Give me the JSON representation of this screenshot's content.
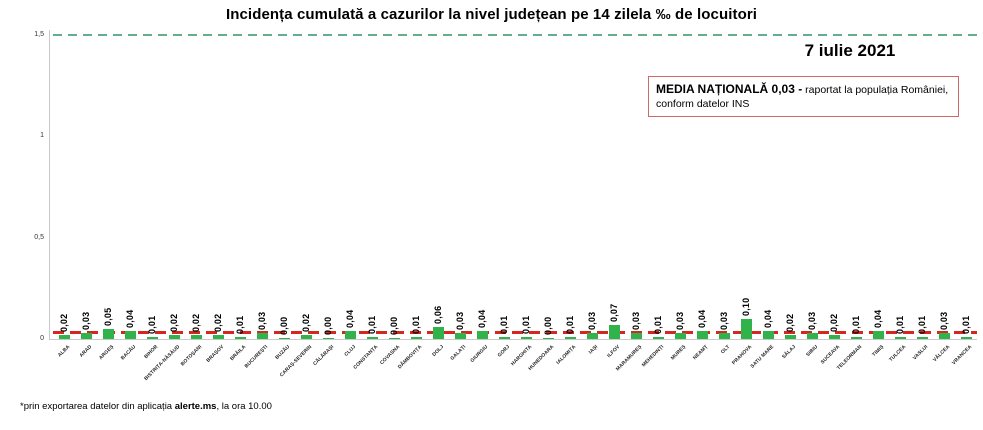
{
  "title": "Incidența cumulată a cazurilor la nivel județean pe 14 zilela ‰ de locuitori",
  "date_label": "7 iulie 2021",
  "national_average_box": {
    "bold_text": "MEDIA NAȚIONALĂ 0,03 -",
    "text_line1": " raportat la populația României,",
    "text_line2": "conform datelor INS"
  },
  "footnote": {
    "prefix": "*prin exportarea datelor din aplicația ",
    "bold": "alerte.ms",
    "suffix": ", la ora 10.00"
  },
  "chart_data": {
    "type": "bar",
    "title": "Incidența cumulată a cazurilor la nivel județean pe 14 zilela ‰ de locuitori",
    "xlabel": "",
    "ylabel": "",
    "ylim": [
      0,
      1.5
    ],
    "yticks": [
      {
        "value": 0,
        "label": "0"
      },
      {
        "value": 0.5,
        "label": "0,5"
      },
      {
        "value": 1,
        "label": "1"
      },
      {
        "value": 1.5,
        "label": "1,5"
      }
    ],
    "grid": false,
    "legend": null,
    "bar_color": "#2fb34a",
    "categories": [
      "ALBA",
      "ARAD",
      "ARGEȘ",
      "BACĂU",
      "BIHOR",
      "BISTRIȚA-NĂSĂUD",
      "BOTOȘANI",
      "BRAȘOV",
      "BRĂILA",
      "BUCUREȘTI",
      "BUZĂU",
      "CARAȘ-SEVERIN",
      "CĂLĂRAȘI",
      "CLUJ",
      "CONSTANȚA",
      "COVASNA",
      "DÂMBOVIȚA",
      "DOLJ",
      "GALAȚI",
      "GIURGIU",
      "GORJ",
      "HARGHITA",
      "HUNEDOARA",
      "IALOMIȚA",
      "IAȘI",
      "ILFOV",
      "MARAMUREȘ",
      "MEHEDINȚI",
      "MUREȘ",
      "NEAMȚ",
      "OLT",
      "PRAHOVA",
      "SATU MARE",
      "SĂLAJ",
      "SIBIU",
      "SUCEAVA",
      "TELEORMAN",
      "TIMIȘ",
      "TULCEA",
      "VASLUI",
      "VÂLCEA",
      "VRANCEA"
    ],
    "values": [
      0.02,
      0.03,
      0.05,
      0.04,
      0.01,
      0.02,
      0.02,
      0.02,
      0.01,
      0.03,
      0.0,
      0.02,
      0.0,
      0.04,
      0.01,
      0.0,
      0.01,
      0.06,
      0.03,
      0.04,
      0.01,
      0.01,
      0.0,
      0.01,
      0.03,
      0.07,
      0.03,
      0.01,
      0.03,
      0.04,
      0.03,
      0.1,
      0.04,
      0.02,
      0.03,
      0.02,
      0.01,
      0.04,
      0.01,
      0.01,
      0.03,
      0.01
    ],
    "value_labels": [
      "0,02",
      "0,03",
      "0,05",
      "0,04",
      "0,01",
      "0,02",
      "0,02",
      "0,02",
      "0,01",
      "0,03",
      "0,00",
      "0,02",
      "0,00",
      "0,04",
      "0,01",
      "0,00",
      "0,01",
      "0,06",
      "0,03",
      "0,04",
      "0,01",
      "0,01",
      "0,00",
      "0,01",
      "0,03",
      "0,07",
      "0,03",
      "0,01",
      "0,03",
      "0,04",
      "0,03",
      "0,10",
      "0,04",
      "0,02",
      "0,03",
      "0,02",
      "0,01",
      "0,04",
      "0,01",
      "0,01",
      "0,03",
      "0,01"
    ],
    "reference_lines": [
      {
        "name": "media-nationala",
        "value": 0.03,
        "color": "#d6261f",
        "style": "dashed"
      },
      {
        "name": "plafon-1-5",
        "value": 1.5,
        "color": "#63ae8d",
        "style": "dashed"
      }
    ]
  }
}
